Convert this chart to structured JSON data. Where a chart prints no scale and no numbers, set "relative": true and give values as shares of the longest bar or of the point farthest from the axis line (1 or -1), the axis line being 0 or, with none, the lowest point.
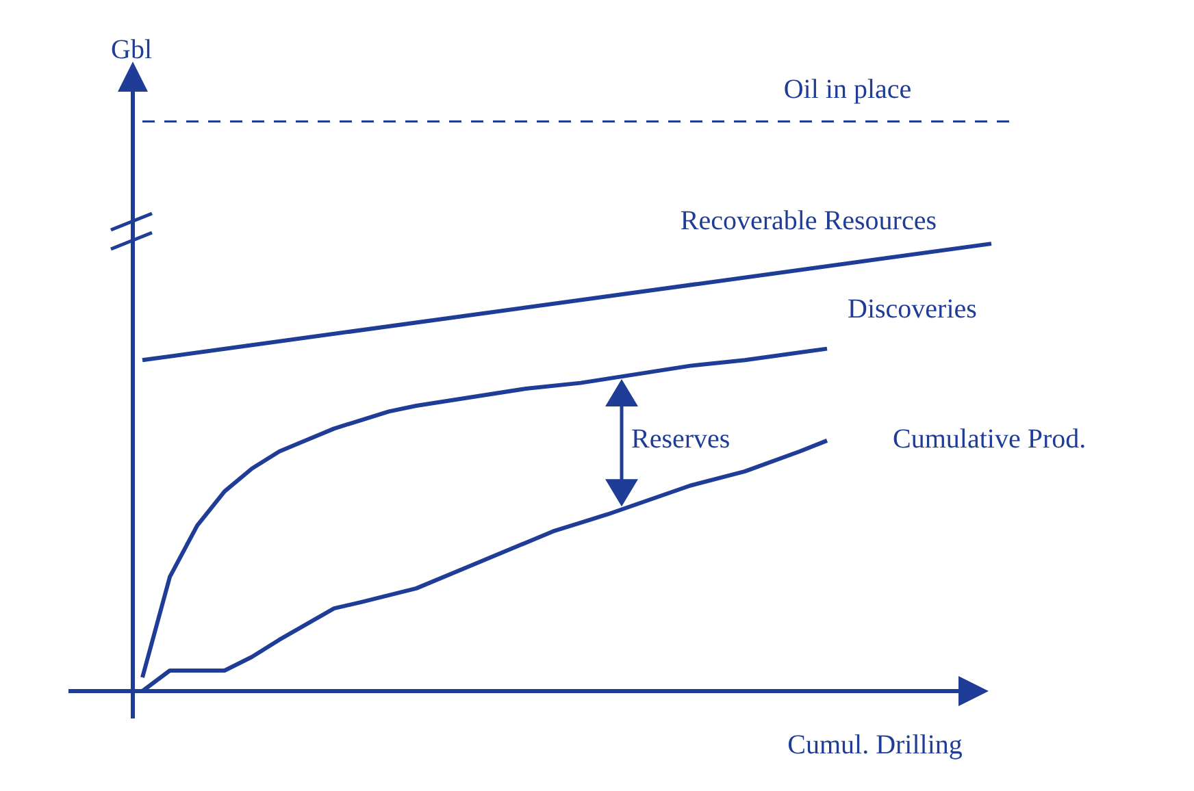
{
  "chart_data": {
    "type": "line",
    "relative": true,
    "xlabel": "Cumul. Drilling",
    "ylabel": "Gbl",
    "legend": false,
    "grid": false,
    "marker": "none",
    "line_style": "solid",
    "annotations": [
      "Reserves"
    ],
    "categories": [
      null,
      null,
      null,
      null,
      null,
      null,
      null,
      null,
      null,
      null,
      null,
      null,
      null,
      null,
      null,
      null,
      null,
      null,
      null,
      null,
      null,
      null,
      null,
      null,
      null,
      null,
      null,
      null,
      null,
      null,
      null,
      null,
      null
    ],
    "series": [
      {
        "name": "Oil in place",
        "color": "#1f3c96",
        "line_style": "dashed",
        "values": [
          1,
          1,
          1,
          1,
          1,
          1,
          1,
          1,
          1,
          1,
          1,
          1,
          1,
          1,
          1,
          1,
          1,
          1,
          1,
          1,
          1,
          1,
          1,
          1,
          1,
          1,
          1,
          1,
          1,
          1,
          1,
          1,
          1
        ]
      },
      {
        "name": "Recoverable Resources",
        "color": "#1f3c96",
        "values": [
          0.58,
          null,
          null,
          null,
          null,
          null,
          null,
          null,
          null,
          null,
          null,
          null,
          null,
          null,
          null,
          null,
          null,
          null,
          null,
          null,
          null,
          null,
          null,
          null,
          null,
          null,
          null,
          null,
          null,
          null,
          null,
          0.784,
          null
        ]
      },
      {
        "name": "Discoveries",
        "color": "#1f3c96",
        "values": [
          0.024,
          0.2,
          0.29,
          0.35,
          0.39,
          0.42,
          0.44,
          0.46,
          0.475,
          0.49,
          0.5,
          null,
          0.515,
          null,
          0.53,
          null,
          0.54,
          null,
          0.555,
          null,
          0.57,
          null,
          0.58,
          null,
          null,
          0.6,
          null,
          null,
          null,
          null,
          null,
          null,
          null
        ]
      },
      {
        "name": "Cumulative Prod.",
        "color": "#1f3c96",
        "values": [
          0,
          0.036,
          0.036,
          0.036,
          0.06,
          0.09,
          null,
          0.145,
          0.156,
          null,
          0.18,
          null,
          0.22,
          null,
          null,
          0.28,
          null,
          0.31,
          null,
          null,
          0.36,
          null,
          0.385,
          null,
          0.42,
          0.439,
          null,
          null,
          null,
          null,
          null,
          null,
          null
        ]
      }
    ]
  }
}
